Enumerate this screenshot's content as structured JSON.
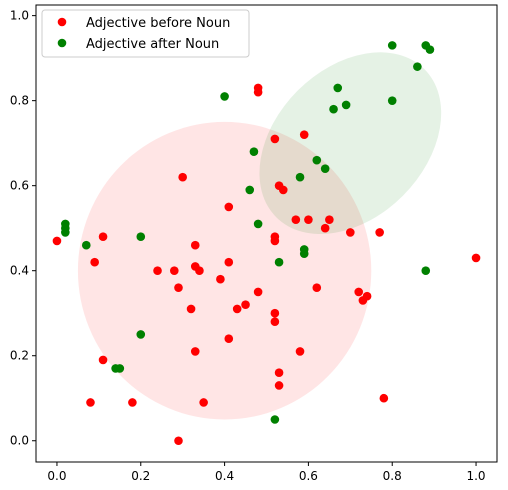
{
  "chart_data": {
    "type": "scatter",
    "xlim": [
      -0.05,
      1.05
    ],
    "ylim": [
      -0.05,
      1.025
    ],
    "x_ticks": [
      "0.0",
      "0.2",
      "0.4",
      "0.6",
      "0.8",
      "1.0"
    ],
    "y_ticks": [
      "0.0",
      "0.2",
      "0.4",
      "0.6",
      "0.8",
      "1.0"
    ],
    "grid": false,
    "legend_position": "top-left",
    "series": [
      {
        "name": "Adjective before Noun",
        "color": "#ff0000",
        "ellipse": {
          "center": [
            0.4,
            0.4
          ],
          "width": 0.7,
          "height": 0.7,
          "angle": 0,
          "fill": "#ff0000",
          "alpha": 0.1
        },
        "points": [
          [
            0.0,
            0.47
          ],
          [
            0.09,
            0.42
          ],
          [
            0.08,
            0.09
          ],
          [
            0.11,
            0.48
          ],
          [
            0.11,
            0.19
          ],
          [
            0.18,
            0.09
          ],
          [
            0.24,
            0.4
          ],
          [
            0.28,
            0.4
          ],
          [
            0.29,
            0.36
          ],
          [
            0.29,
            0.0
          ],
          [
            0.3,
            0.62
          ],
          [
            0.32,
            0.31
          ],
          [
            0.33,
            0.46
          ],
          [
            0.33,
            0.41
          ],
          [
            0.34,
            0.4
          ],
          [
            0.33,
            0.21
          ],
          [
            0.35,
            0.09
          ],
          [
            0.39,
            0.38
          ],
          [
            0.41,
            0.55
          ],
          [
            0.41,
            0.42
          ],
          [
            0.41,
            0.24
          ],
          [
            0.43,
            0.31
          ],
          [
            0.45,
            0.32
          ],
          [
            0.48,
            0.83
          ],
          [
            0.48,
            0.82
          ],
          [
            0.48,
            0.35
          ],
          [
            0.52,
            0.71
          ],
          [
            0.52,
            0.48
          ],
          [
            0.52,
            0.47
          ],
          [
            0.52,
            0.3
          ],
          [
            0.52,
            0.28
          ],
          [
            0.53,
            0.6
          ],
          [
            0.53,
            0.16
          ],
          [
            0.53,
            0.13
          ],
          [
            0.54,
            0.59
          ],
          [
            0.57,
            0.52
          ],
          [
            0.58,
            0.21
          ],
          [
            0.59,
            0.72
          ],
          [
            0.6,
            0.52
          ],
          [
            0.62,
            0.36
          ],
          [
            0.64,
            0.5
          ],
          [
            0.65,
            0.52
          ],
          [
            0.7,
            0.49
          ],
          [
            0.72,
            0.35
          ],
          [
            0.73,
            0.33
          ],
          [
            0.74,
            0.34
          ],
          [
            0.77,
            0.49
          ],
          [
            0.78,
            0.1
          ],
          [
            1.0,
            0.43
          ]
        ]
      },
      {
        "name": "Adjective after Noun",
        "color": "#008000",
        "ellipse": {
          "center": [
            0.7,
            0.7
          ],
          "width": 0.5,
          "height": 0.35,
          "angle": 45,
          "fill": "#008000",
          "alpha": 0.1
        },
        "points": [
          [
            0.02,
            0.49
          ],
          [
            0.02,
            0.5
          ],
          [
            0.02,
            0.51
          ],
          [
            0.07,
            0.46
          ],
          [
            0.14,
            0.17
          ],
          [
            0.15,
            0.17
          ],
          [
            0.2,
            0.48
          ],
          [
            0.2,
            0.25
          ],
          [
            0.4,
            0.81
          ],
          [
            0.46,
            0.59
          ],
          [
            0.47,
            0.68
          ],
          [
            0.48,
            0.51
          ],
          [
            0.53,
            0.42
          ],
          [
            0.52,
            0.05
          ],
          [
            0.58,
            0.62
          ],
          [
            0.59,
            0.45
          ],
          [
            0.59,
            0.44
          ],
          [
            0.62,
            0.66
          ],
          [
            0.64,
            0.64
          ],
          [
            0.66,
            0.78
          ],
          [
            0.67,
            0.83
          ],
          [
            0.69,
            0.79
          ],
          [
            0.8,
            0.93
          ],
          [
            0.8,
            0.8
          ],
          [
            0.86,
            0.88
          ],
          [
            0.88,
            0.93
          ],
          [
            0.89,
            0.92
          ],
          [
            0.88,
            0.4
          ]
        ]
      }
    ]
  }
}
